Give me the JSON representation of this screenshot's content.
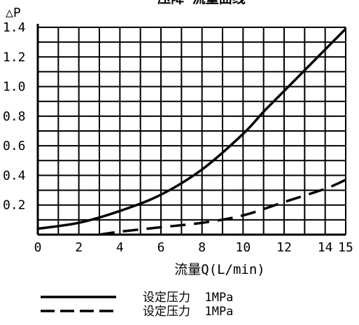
{
  "chart_data": {
    "type": "line",
    "title": "压降-流量曲线",
    "xlabel": "流量Q(L/min)",
    "ylabel": "△P",
    "x_ticks": [
      0,
      2,
      4,
      6,
      8,
      10,
      12,
      14,
      15
    ],
    "y_ticks": [
      0.2,
      0.4,
      0.6,
      0.8,
      1.0,
      1.2,
      1.4
    ],
    "y_tick_labels": [
      "0.2",
      "0.4",
      "0.6",
      "0.8",
      "1.0",
      "1.2",
      "1.4"
    ],
    "xlim": [
      0,
      15
    ],
    "ylim": [
      0,
      1.4
    ],
    "grid": true,
    "legend_position": "bottom-left",
    "series": [
      {
        "name": "设定压力  1MPa",
        "line_style": "solid",
        "color": "#000000",
        "x": [
          0,
          2,
          4,
          6,
          8,
          10,
          11,
          12,
          13,
          14,
          15
        ],
        "y": [
          0.04,
          0.08,
          0.16,
          0.27,
          0.44,
          0.68,
          0.83,
          0.97,
          1.11,
          1.25,
          1.39
        ]
      },
      {
        "name": "设定压力  1MPa",
        "line_style": "dashed",
        "color": "#000000",
        "x": [
          3,
          4,
          6,
          8,
          10,
          12,
          14,
          15
        ],
        "y": [
          0.0,
          0.02,
          0.05,
          0.08,
          0.13,
          0.22,
          0.31,
          0.37
        ]
      }
    ]
  }
}
